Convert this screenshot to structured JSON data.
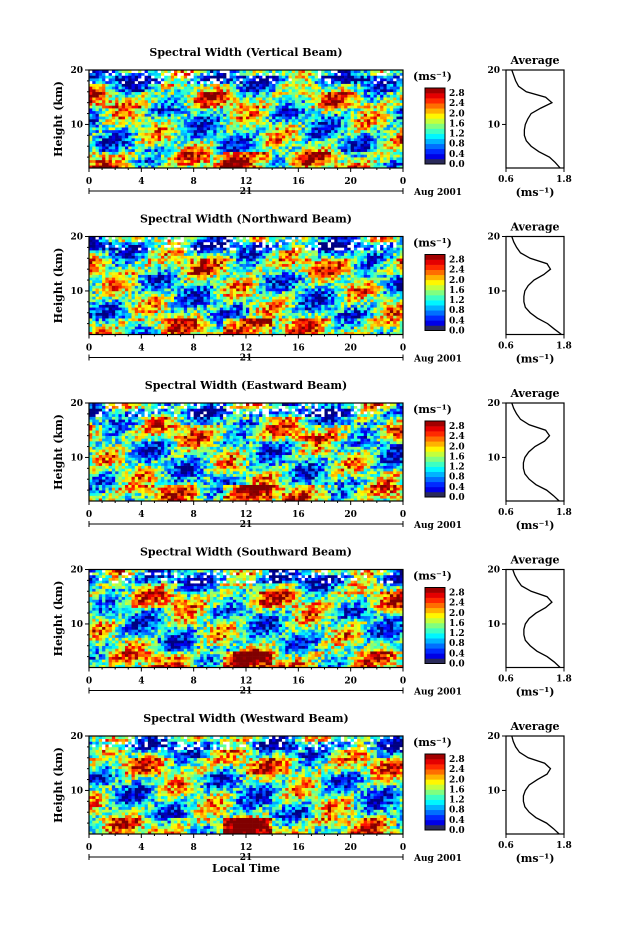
{
  "figure": {
    "xlabel": "Local Time",
    "ylabel": "Height (km)",
    "colorbar_unit": "(ms⁻¹)",
    "profile_title": "Average",
    "profile_xlabel": "(ms⁻¹)",
    "date_label": "Aug 2001",
    "day_label": "21"
  },
  "chart_data": [
    {
      "type": "heatmap",
      "title": "Spectral Width (Vertical Beam)",
      "x_ticks": [
        "0",
        "4",
        "8",
        "12",
        "16",
        "20",
        "0"
      ],
      "y_ticks": [
        "10",
        "20"
      ],
      "xlim": [
        0,
        24
      ],
      "ylim": [
        2,
        20
      ],
      "colorbar_ticks": [
        "0.0",
        "0.4",
        "0.8",
        "1.2",
        "1.6",
        "2.0",
        "2.4",
        "2.8"
      ],
      "clim": [
        0,
        3.0
      ],
      "profile": {
        "title": "Average",
        "x_ticks": [
          "0.6",
          "1.8"
        ],
        "y_ticks": [
          "10",
          "20"
        ],
        "xlim": [
          0.6,
          1.8
        ],
        "ylim": [
          2,
          20
        ],
        "heights": [
          2,
          3,
          4,
          5,
          6,
          7,
          8,
          9,
          10,
          11,
          12,
          13,
          14,
          15,
          16,
          17,
          18,
          19,
          20
        ],
        "values": [
          1.72,
          1.62,
          1.5,
          1.28,
          1.12,
          1.02,
          0.98,
          0.98,
          1.0,
          1.05,
          1.12,
          1.32,
          1.55,
          1.42,
          1.02,
          0.86,
          0.8,
          0.76,
          0.72
        ]
      }
    },
    {
      "type": "heatmap",
      "title": "Spectral Width (Northward Beam)",
      "x_ticks": [
        "0",
        "4",
        "8",
        "12",
        "16",
        "20",
        "0"
      ],
      "y_ticks": [
        "10",
        "20"
      ],
      "xlim": [
        0,
        24
      ],
      "ylim": [
        2,
        20
      ],
      "colorbar_ticks": [
        "0.0",
        "0.4",
        "0.8",
        "1.2",
        "1.6",
        "2.0",
        "2.4",
        "2.8"
      ],
      "clim": [
        0,
        3.0
      ],
      "profile": {
        "title": "Average",
        "x_ticks": [
          "0.6",
          "1.8"
        ],
        "y_ticks": [
          "10",
          "20"
        ],
        "xlim": [
          0.6,
          1.8
        ],
        "ylim": [
          2,
          20
        ],
        "heights": [
          2,
          3,
          4,
          5,
          6,
          7,
          8,
          9,
          10,
          11,
          12,
          13,
          14,
          15,
          16,
          17,
          18,
          19,
          20
        ],
        "values": [
          1.75,
          1.6,
          1.46,
          1.25,
          1.1,
          1.0,
          0.97,
          0.97,
          0.99,
          1.06,
          1.18,
          1.38,
          1.52,
          1.45,
          1.1,
          0.9,
          0.82,
          0.76,
          0.72
        ]
      }
    },
    {
      "type": "heatmap",
      "title": "Spectral Width (Eastward Beam)",
      "x_ticks": [
        "0",
        "4",
        "8",
        "12",
        "16",
        "20",
        "0"
      ],
      "y_ticks": [
        "10",
        "20"
      ],
      "xlim": [
        0,
        24
      ],
      "ylim": [
        2,
        20
      ],
      "colorbar_ticks": [
        "0.0",
        "0.4",
        "0.8",
        "1.2",
        "1.6",
        "2.0",
        "2.4",
        "2.8"
      ],
      "clim": [
        0,
        3.0
      ],
      "profile": {
        "title": "Average",
        "x_ticks": [
          "0.6",
          "1.8"
        ],
        "y_ticks": [
          "10",
          "20"
        ],
        "xlim": [
          0.6,
          1.8
        ],
        "ylim": [
          2,
          20
        ],
        "heights": [
          2,
          3,
          4,
          5,
          6,
          7,
          8,
          9,
          10,
          11,
          12,
          13,
          14,
          15,
          16,
          17,
          18,
          19,
          20
        ],
        "values": [
          1.7,
          1.58,
          1.44,
          1.22,
          1.08,
          0.99,
          0.96,
          0.96,
          0.99,
          1.07,
          1.2,
          1.4,
          1.5,
          1.42,
          1.08,
          0.9,
          0.82,
          0.76,
          0.72
        ]
      }
    },
    {
      "type": "heatmap",
      "title": "Spectral Width (Southward Beam)",
      "x_ticks": [
        "0",
        "4",
        "8",
        "12",
        "16",
        "20",
        "0"
      ],
      "y_ticks": [
        "10",
        "20"
      ],
      "xlim": [
        0,
        24
      ],
      "ylim": [
        2,
        20
      ],
      "colorbar_ticks": [
        "0.0",
        "0.4",
        "0.8",
        "1.2",
        "1.6",
        "2.0",
        "2.4",
        "2.8"
      ],
      "clim": [
        0,
        3.0
      ],
      "profile": {
        "title": "Average",
        "x_ticks": [
          "0.6",
          "1.8"
        ],
        "y_ticks": [
          "10",
          "20"
        ],
        "xlim": [
          0.6,
          1.8
        ],
        "ylim": [
          2,
          20
        ],
        "heights": [
          2,
          3,
          4,
          5,
          6,
          7,
          8,
          9,
          10,
          11,
          12,
          13,
          14,
          15,
          16,
          17,
          18,
          19,
          20
        ],
        "values": [
          1.72,
          1.6,
          1.45,
          1.24,
          1.1,
          1.0,
          0.97,
          0.97,
          1.0,
          1.08,
          1.22,
          1.42,
          1.55,
          1.45,
          1.12,
          0.92,
          0.84,
          0.78,
          0.74
        ]
      }
    },
    {
      "type": "heatmap",
      "title": "Spectral Width (Westward Beam)",
      "x_ticks": [
        "0",
        "4",
        "8",
        "12",
        "16",
        "20",
        "0"
      ],
      "y_ticks": [
        "10",
        "20"
      ],
      "xlim": [
        0,
        24
      ],
      "ylim": [
        2,
        20
      ],
      "colorbar_ticks": [
        "0.0",
        "0.4",
        "0.8",
        "1.2",
        "1.6",
        "2.0",
        "2.4",
        "2.8"
      ],
      "clim": [
        0,
        3.0
      ],
      "profile": {
        "title": "Average",
        "x_ticks": [
          "0.6",
          "1.8"
        ],
        "y_ticks": [
          "10",
          "20"
        ],
        "xlim": [
          0.6,
          1.8
        ],
        "ylim": [
          2,
          20
        ],
        "heights": [
          2,
          3,
          4,
          5,
          6,
          7,
          8,
          9,
          10,
          11,
          12,
          13,
          14,
          15,
          16,
          17,
          18,
          19,
          20
        ],
        "values": [
          1.7,
          1.58,
          1.44,
          1.22,
          1.08,
          0.99,
          0.96,
          0.96,
          1.0,
          1.08,
          1.25,
          1.45,
          1.52,
          1.4,
          1.06,
          0.88,
          0.8,
          0.75,
          0.72
        ]
      }
    }
  ]
}
